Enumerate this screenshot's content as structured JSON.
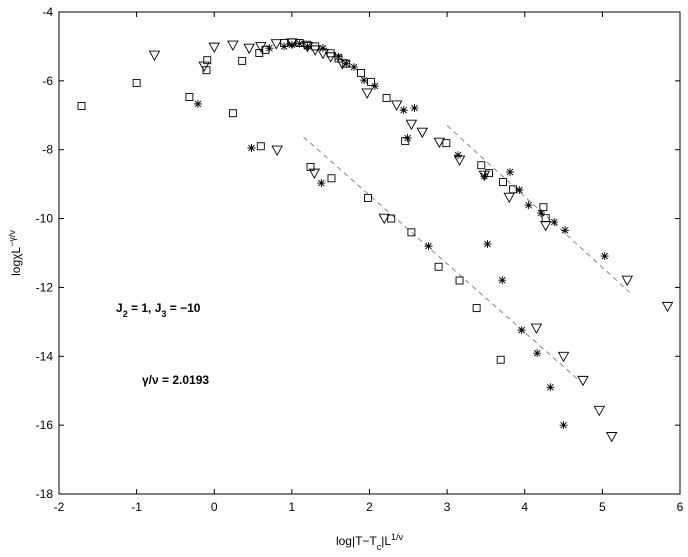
{
  "chart_data": {
    "type": "scatter",
    "xlim": [
      -2,
      6
    ],
    "ylim": [
      -18,
      -4
    ],
    "xticks": [
      -2,
      -1,
      0,
      1,
      2,
      3,
      4,
      5,
      6
    ],
    "yticks": [
      -18,
      -16,
      -14,
      -12,
      -10,
      -8,
      -6,
      -4
    ],
    "xlabel": [
      {
        "text": "log|T−T"
      },
      {
        "text": "c",
        "sub": true
      },
      {
        "text": "|L"
      },
      {
        "text": "1/ν",
        "sup": true
      }
    ],
    "ylabel": [
      {
        "text": "logχL"
      },
      {
        "text": "−γ/ν",
        "sup": true
      }
    ],
    "annotations": [
      [
        {
          "text": "J"
        },
        {
          "text": "2",
          "sub": true
        },
        {
          "text": " = 1, J"
        },
        {
          "text": "3",
          "sub": true
        },
        {
          "text": " = −10"
        }
      ],
      [
        {
          "text": "γ/ν = 2.0193"
        }
      ]
    ],
    "series": [
      {
        "marker": "square",
        "color": "#000",
        "x": [
          -1.71,
          -1.0,
          -0.32,
          -0.1,
          -0.09,
          0.24,
          0.36,
          0.58,
          0.66,
          0.6,
          0.9,
          1.0,
          1.1,
          1.2,
          1.3,
          1.5,
          1.6,
          1.7,
          1.24,
          1.51,
          1.98,
          2.28,
          2.54,
          2.89,
          3.16,
          3.38,
          3.69,
          1.89,
          2.02,
          2.22,
          2.46,
          2.99,
          3.44,
          3.54,
          3.72,
          3.85,
          4.24,
          4.27
        ],
        "y": [
          -6.73,
          -6.06,
          -6.47,
          -5.69,
          -5.4,
          -6.94,
          -5.42,
          -5.19,
          -5.1,
          -7.9,
          -4.9,
          -4.88,
          -4.9,
          -4.95,
          -5.0,
          -5.2,
          -5.35,
          -5.5,
          -8.5,
          -8.83,
          -9.4,
          -10.0,
          -10.4,
          -11.4,
          -11.8,
          -12.6,
          -14.1,
          -5.77,
          -6.03,
          -6.5,
          -7.75,
          -7.81,
          -8.45,
          -8.68,
          -8.94,
          -9.15,
          -9.67,
          -9.99
        ]
      },
      {
        "marker": "star",
        "color": "#000",
        "x": [
          -0.21,
          0.48,
          0.71,
          0.9,
          1.0,
          1.1,
          1.2,
          1.4,
          1.6,
          1.7,
          1.8,
          1.38,
          1.93,
          2.07,
          2.44,
          2.49,
          2.58,
          2.76,
          3.14,
          3.48,
          3.52,
          3.71,
          3.81,
          3.93,
          3.96,
          4.05,
          4.16,
          4.21,
          4.33,
          4.38,
          4.52,
          4.5,
          5.03
        ],
        "y": [
          -6.67,
          -7.95,
          -5.05,
          -5.0,
          -4.95,
          -4.92,
          -5.0,
          -5.05,
          -5.3,
          -5.5,
          -5.6,
          -8.97,
          -5.98,
          -6.15,
          -6.85,
          -7.66,
          -6.79,
          -10.8,
          -8.16,
          -8.77,
          -10.74,
          -11.79,
          -8.65,
          -9.17,
          -13.24,
          -9.61,
          -13.91,
          -9.84,
          -14.9,
          -10.1,
          -10.34,
          -16.0,
          -11.09
        ]
      },
      {
        "marker": "triangle",
        "color": "#000",
        "x": [
          -0.77,
          -0.13,
          0.0,
          0.24,
          0.45,
          0.6,
          0.8,
          1.0,
          1.2,
          1.3,
          1.4,
          1.5,
          1.65,
          0.81,
          1.29,
          1.97,
          2.19,
          2.35,
          2.54,
          2.68,
          2.9,
          3.16,
          3.48,
          3.8,
          4.15,
          4.27,
          4.5,
          4.75,
          4.96,
          5.12,
          5.32,
          5.84
        ],
        "y": [
          -5.25,
          -5.57,
          -5.02,
          -4.96,
          -5.05,
          -5.0,
          -4.92,
          -4.9,
          -5.0,
          -5.1,
          -5.2,
          -5.3,
          -5.5,
          -8.01,
          -8.68,
          -6.35,
          -9.99,
          -6.7,
          -7.26,
          -7.49,
          -7.78,
          -8.3,
          -8.74,
          -9.38,
          -13.18,
          -10.2,
          -14.0,
          -14.7,
          -15.57,
          -16.33,
          -11.79,
          -12.55
        ]
      }
    ],
    "lines": [
      {
        "style": "dashed",
        "color": "#888",
        "x": [
          3.0,
          5.35
        ],
        "y": [
          -7.3,
          -12.14
        ]
      },
      {
        "style": "dashed",
        "color": "#888",
        "x": [
          1.15,
          4.73
        ],
        "y": [
          -7.63,
          -14.76
        ]
      }
    ]
  }
}
